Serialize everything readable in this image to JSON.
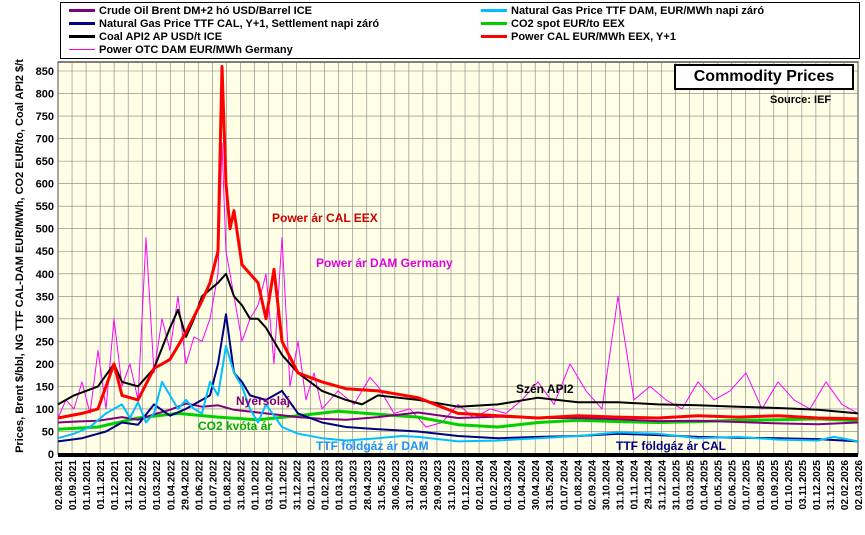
{
  "chart_data": {
    "type": "line",
    "title": "Commodity Prices",
    "source": "Source:  IEF",
    "ylabel": "Prices, Brent $/bbl, NG TTF CAL-DAM EUR/MWh, CO2 EUR/to, Coal API2 $/t",
    "ylim": [
      0,
      870
    ],
    "yticks": [
      0,
      50,
      100,
      150,
      200,
      250,
      300,
      350,
      400,
      450,
      500,
      550,
      600,
      650,
      700,
      750,
      800,
      850
    ],
    "xlim": [
      "2021-08-02",
      "2026-03-02"
    ],
    "x_tick_labels": [
      "02.08.2021",
      "01.09.2021",
      "01.10.2021",
      "01.11.2021",
      "01.12.2021",
      "31.12.2021",
      "01.02.2022",
      "01.03.2022",
      "01.04.2022",
      "29.04.2022",
      "01.06.2022",
      "01.07.2022",
      "01.08.2022",
      "31.08.2022",
      "01.10.2022",
      "03.10.2022",
      "01.11.2022",
      "31.12.2022",
      "02.01.2023",
      "01.02.2023",
      "01.03.2023",
      "01.03.2023",
      "28.04.2023",
      "31.05.2023",
      "30.06.2023",
      "31.07.2023",
      "31.08.2023",
      "29.09.2023",
      "31.10.2023",
      "01.12.2023",
      "02.01.2024",
      "01.02.2024",
      "01.03.2024",
      "01.04.2024",
      "30.04.2024",
      "31.05.2024",
      "01.07.2024",
      "01.08.2024",
      "02.09.2024",
      "30.10.2024",
      "31.10.2024",
      "01.11.2024",
      "29.11.2024",
      "31.12.2024",
      "31.01.2025",
      "03.03.2025",
      "01.04.2025",
      "01.05.2025",
      "02.06.2025",
      "01.07.2025",
      "01.08.2025",
      "01.09.2025",
      "01.10.2025",
      "03.11.2025",
      "01.12.2025",
      "31.12.2025",
      "02.02.2026",
      "02.03.2026"
    ],
    "series": [
      {
        "name": "Crude Oil Brent DM+2 hó USD/Barrel ICE",
        "color": "#800080",
        "width": 2,
        "x": [
          0,
          0.02,
          0.05,
          0.08,
          0.1,
          0.12,
          0.14,
          0.16,
          0.18,
          0.2,
          0.22,
          0.25,
          0.28,
          0.3,
          0.33,
          0.36,
          0.4,
          0.45,
          0.5,
          0.55,
          0.6,
          0.65,
          0.7,
          0.75,
          0.8,
          0.85,
          0.9,
          0.95,
          1
        ],
        "values": [
          70,
          72,
          74,
          82,
          76,
          88,
          98,
          112,
          105,
          108,
          98,
          92,
          86,
          82,
          78,
          76,
          82,
          92,
          80,
          83,
          80,
          80,
          77,
          73,
          74,
          71,
          68,
          66,
          70
        ]
      },
      {
        "name": "Natural Gas Price TTF DAM, EUR/MWh napi záró",
        "color": "#00bfff",
        "width": 2,
        "x": [
          0,
          0.02,
          0.04,
          0.06,
          0.08,
          0.09,
          0.1,
          0.11,
          0.12,
          0.13,
          0.15,
          0.16,
          0.17,
          0.18,
          0.19,
          0.2,
          0.21,
          0.22,
          0.23,
          0.24,
          0.25,
          0.26,
          0.28,
          0.3,
          0.33,
          0.36,
          0.4,
          0.43,
          0.45,
          0.5,
          0.55,
          0.6,
          0.65,
          0.7,
          0.75,
          0.8,
          0.85,
          0.9,
          0.95,
          0.97,
          1
        ],
        "values": [
          35,
          45,
          60,
          90,
          110,
          80,
          115,
          70,
          90,
          160,
          100,
          120,
          100,
          90,
          160,
          130,
          240,
          180,
          150,
          100,
          70,
          110,
          60,
          45,
          35,
          30,
          35,
          40,
          38,
          28,
          30,
          35,
          40,
          48,
          45,
          35,
          38,
          32,
          30,
          38,
          28
        ]
      },
      {
        "name": "Natural Gas Price TTF CAL, Y+1, Settlement napi záró",
        "color": "#000080",
        "width": 2,
        "x": [
          0,
          0.03,
          0.06,
          0.08,
          0.1,
          0.12,
          0.14,
          0.16,
          0.18,
          0.19,
          0.2,
          0.21,
          0.22,
          0.23,
          0.24,
          0.26,
          0.28,
          0.3,
          0.33,
          0.36,
          0.4,
          0.45,
          0.5,
          0.55,
          0.6,
          0.65,
          0.7,
          0.75,
          0.8,
          0.85,
          0.9,
          0.95,
          1
        ],
        "values": [
          28,
          35,
          50,
          70,
          65,
          110,
          85,
          100,
          120,
          130,
          200,
          310,
          180,
          160,
          130,
          120,
          140,
          90,
          70,
          60,
          55,
          50,
          40,
          35,
          38,
          40,
          45,
          42,
          38,
          36,
          35,
          33,
          28
        ]
      },
      {
        "name": "CO2 spot EUR/to EEX",
        "color": "#00d000",
        "width": 3,
        "x": [
          0,
          0.05,
          0.1,
          0.15,
          0.2,
          0.25,
          0.3,
          0.35,
          0.4,
          0.45,
          0.5,
          0.55,
          0.6,
          0.65,
          0.7,
          0.75,
          0.8,
          0.85,
          0.9,
          0.95,
          1
        ],
        "values": [
          55,
          60,
          80,
          90,
          82,
          76,
          85,
          95,
          88,
          82,
          65,
          60,
          70,
          75,
          72,
          70,
          72,
          75,
          76,
          78,
          74
        ]
      },
      {
        "name": "Coal API2 AP USD/t ICE",
        "color": "#000000",
        "width": 2,
        "x": [
          0,
          0.02,
          0.05,
          0.07,
          0.08,
          0.1,
          0.12,
          0.14,
          0.15,
          0.16,
          0.17,
          0.18,
          0.2,
          0.21,
          0.22,
          0.23,
          0.24,
          0.25,
          0.26,
          0.28,
          0.3,
          0.33,
          0.36,
          0.38,
          0.4,
          0.45,
          0.5,
          0.55,
          0.6,
          0.65,
          0.7,
          0.75,
          0.8,
          0.85,
          0.9,
          0.95,
          1
        ],
        "values": [
          110,
          130,
          150,
          200,
          160,
          150,
          190,
          280,
          320,
          260,
          300,
          350,
          380,
          400,
          350,
          330,
          300,
          300,
          280,
          220,
          180,
          140,
          120,
          110,
          130,
          120,
          105,
          110,
          125,
          115,
          115,
          110,
          108,
          105,
          102,
          98,
          90
        ]
      },
      {
        "name": "Power CAL EUR/MWh EEX, Y+1",
        "color": "#ff0000",
        "width": 3,
        "x": [
          0,
          0.03,
          0.05,
          0.06,
          0.07,
          0.08,
          0.1,
          0.12,
          0.14,
          0.16,
          0.18,
          0.19,
          0.2,
          0.205,
          0.21,
          0.215,
          0.22,
          0.23,
          0.24,
          0.25,
          0.26,
          0.27,
          0.28,
          0.3,
          0.33,
          0.36,
          0.4,
          0.45,
          0.5,
          0.55,
          0.6,
          0.65,
          0.7,
          0.75,
          0.8,
          0.85,
          0.9,
          0.95,
          1
        ],
        "values": [
          80,
          90,
          100,
          150,
          200,
          130,
          120,
          190,
          210,
          270,
          340,
          380,
          450,
          860,
          600,
          500,
          540,
          420,
          400,
          380,
          300,
          410,
          250,
          180,
          160,
          145,
          140,
          125,
          90,
          85,
          80,
          85,
          82,
          80,
          85,
          82,
          85,
          80,
          78
        ]
      },
      {
        "name": "Power OTC DAM EUR/MWh Germany",
        "color": "#ff00ff",
        "width": 1,
        "x": [
          0,
          0.01,
          0.02,
          0.03,
          0.04,
          0.05,
          0.06,
          0.07,
          0.08,
          0.09,
          0.1,
          0.11,
          0.12,
          0.13,
          0.14,
          0.15,
          0.16,
          0.17,
          0.18,
          0.19,
          0.2,
          0.205,
          0.21,
          0.22,
          0.23,
          0.24,
          0.25,
          0.26,
          0.27,
          0.28,
          0.29,
          0.3,
          0.31,
          0.32,
          0.33,
          0.35,
          0.37,
          0.39,
          0.4,
          0.42,
          0.44,
          0.46,
          0.48,
          0.5,
          0.52,
          0.54,
          0.56,
          0.58,
          0.6,
          0.62,
          0.64,
          0.66,
          0.68,
          0.7,
          0.72,
          0.74,
          0.76,
          0.78,
          0.8,
          0.82,
          0.84,
          0.86,
          0.88,
          0.9,
          0.92,
          0.94,
          0.96,
          0.98,
          1
        ],
        "values": [
          80,
          120,
          100,
          160,
          90,
          230,
          100,
          300,
          150,
          200,
          120,
          480,
          180,
          300,
          230,
          350,
          200,
          260,
          250,
          300,
          400,
          690,
          450,
          350,
          250,
          300,
          330,
          400,
          200,
          480,
          150,
          250,
          120,
          180,
          100,
          140,
          110,
          170,
          150,
          90,
          100,
          60,
          70,
          110,
          80,
          100,
          90,
          120,
          160,
          110,
          200,
          140,
          100,
          350,
          120,
          150,
          120,
          100,
          160,
          120,
          140,
          180,
          100,
          160,
          120,
          100,
          160,
          110,
          90
        ]
      }
    ],
    "annotations": [
      {
        "text": "Power ár CAL EEX",
        "color": "#cc0000"
      },
      {
        "text": "Power ár DAM Germany",
        "color": "#e000e0"
      },
      {
        "text": "Szén API2",
        "color": "#000000"
      },
      {
        "text": "Nyersolaj",
        "color": "#800080"
      },
      {
        "text": "CO2 kvóta ár",
        "color": "#00b000"
      },
      {
        "text": "TTF földgáz ár DAM",
        "color": "#1e90ff"
      },
      {
        "text": "TTF földgáz ár CAL",
        "color": "#000080"
      }
    ]
  },
  "legend": [
    {
      "label": "Crude Oil Brent DM+2 hó USD/Barrel ICE",
      "color": "#800080"
    },
    {
      "label": "Natural Gas Price TTF DAM, EUR/MWh napi záró",
      "color": "#00bfff"
    },
    {
      "label": "Natural Gas Price TTF CAL, Y+1, Settlement napi záró",
      "color": "#000080"
    },
    {
      "label": "CO2 spot EUR/to EEX",
      "color": "#00d000"
    },
    {
      "label": "Coal API2 AP USD/t ICE",
      "color": "#000000"
    },
    {
      "label": "Power CAL EUR/MWh EEX, Y+1",
      "color": "#ff0000"
    },
    {
      "label": "Power OTC DAM EUR/MWh Germany",
      "color": "#ff00ff"
    }
  ]
}
